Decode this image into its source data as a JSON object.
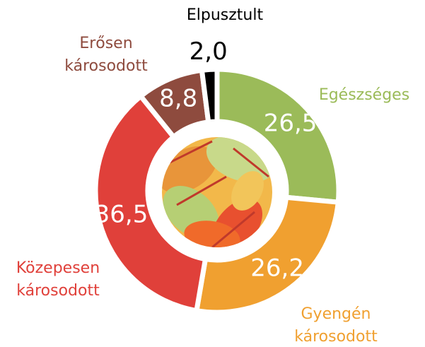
{
  "chart_data": {
    "type": "donut",
    "categories": [
      "Egészséges",
      "Gyengén károsodott",
      "Közepesen károsodott",
      "Erősen károsodott",
      "Elpusztult"
    ],
    "values": [
      26.5,
      26.2,
      36.5,
      8.8,
      2.0
    ],
    "value_labels": [
      "26,5",
      "26,2",
      "36,5",
      "8,8",
      "2,0"
    ],
    "colors": [
      "#9bbb59",
      "#f0a030",
      "#e0403a",
      "#8e4b3e",
      "#000000"
    ]
  }
}
